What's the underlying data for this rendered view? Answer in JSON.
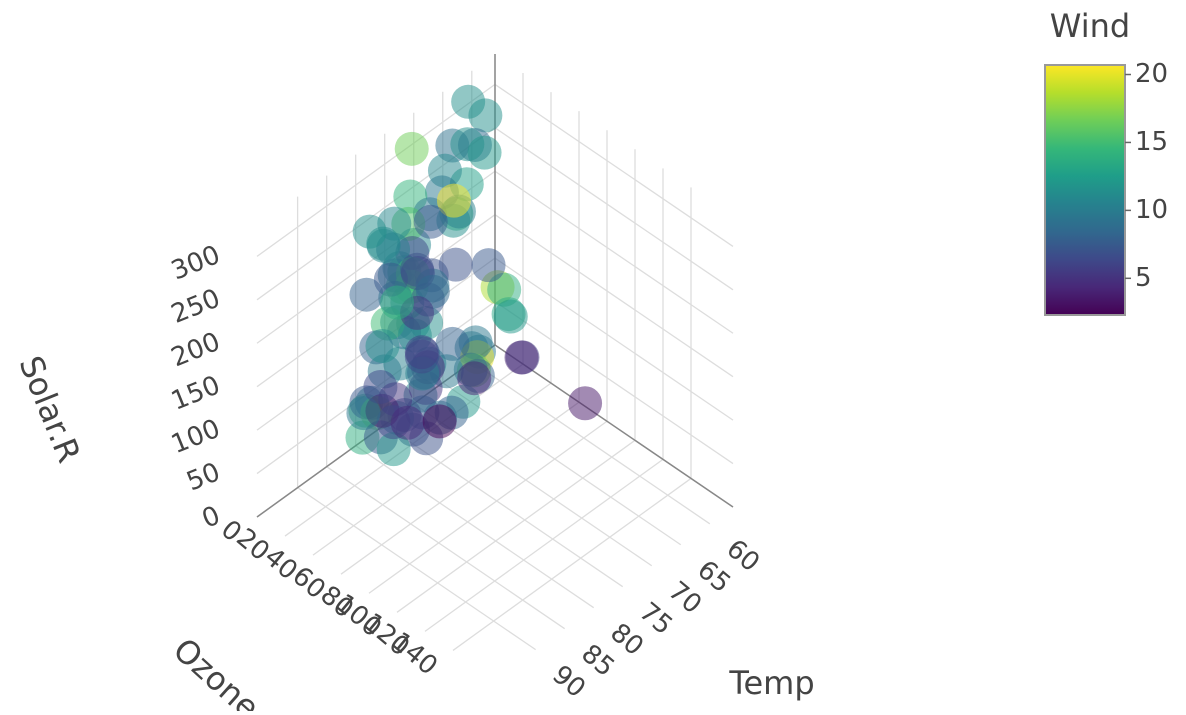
{
  "chart_data": {
    "type": "scatter3d",
    "xlabel": "Ozone",
    "ylabel": "Temp",
    "zlabel": "Solar.R",
    "colorbar_title": "Wind",
    "x": [
      41,
      36,
      12,
      18,
      23,
      19,
      8,
      16,
      11,
      14,
      18,
      14,
      34,
      6,
      30,
      11,
      1,
      11,
      4,
      32,
      23,
      45,
      115,
      37,
      29,
      71,
      39,
      23,
      21,
      37,
      20,
      12,
      13,
      135,
      49,
      32,
      64,
      40,
      77,
      97,
      97,
      85,
      10,
      27,
      7,
      48,
      35,
      61,
      79,
      63,
      16,
      80,
      108,
      20,
      52,
      82,
      50,
      64,
      59,
      39,
      9,
      16,
      122,
      89,
      110,
      44,
      28,
      65,
      168,
      73,
      76,
      118,
      84,
      85,
      96,
      78,
      73,
      91,
      47,
      32,
      20,
      23,
      21,
      24,
      44,
      21,
      28,
      9,
      13,
      46,
      18,
      13,
      24,
      16,
      13,
      23,
      36,
      7,
      14,
      30,
      14,
      18,
      20
    ],
    "y": [
      67,
      72,
      74,
      62,
      65,
      59,
      61,
      69,
      66,
      68,
      58,
      64,
      66,
      57,
      68,
      62,
      59,
      73,
      61,
      61,
      67,
      81,
      79,
      76,
      82,
      90,
      87,
      82,
      77,
      72,
      65,
      73,
      76,
      84,
      85,
      81,
      83,
      83,
      88,
      92,
      92,
      89,
      73,
      81,
      80,
      81,
      82,
      84,
      87,
      85,
      74,
      86,
      85,
      82,
      86,
      88,
      86,
      83,
      81,
      81,
      81,
      82,
      89,
      90,
      90,
      86,
      82,
      80,
      81,
      86,
      97,
      94,
      96,
      94,
      91,
      92,
      93,
      93,
      87,
      84,
      80,
      78,
      75,
      73,
      81,
      76,
      77,
      71,
      71,
      78,
      67,
      76,
      68,
      82,
      64,
      71,
      81,
      69,
      63,
      70,
      75,
      76,
      68
    ],
    "z": [
      190,
      118,
      149,
      313,
      299,
      99,
      19,
      256,
      290,
      274,
      65,
      334,
      307,
      78,
      322,
      44,
      8,
      320,
      25,
      92,
      13,
      252,
      223,
      279,
      127,
      291,
      323,
      148,
      191,
      284,
      37,
      120,
      137,
      269,
      248,
      236,
      175,
      314,
      276,
      267,
      272,
      175,
      264,
      175,
      48,
      260,
      274,
      285,
      187,
      220,
      7,
      294,
      223,
      81,
      82,
      213,
      275,
      253,
      254,
      83,
      24,
      77,
      255,
      229,
      207,
      192,
      273,
      157,
      238,
      215,
      203,
      225,
      237,
      188,
      167,
      197,
      183,
      189,
      95,
      92,
      252,
      220,
      230,
      259,
      236,
      259,
      238,
      24,
      112,
      237,
      224,
      27,
      238,
      201,
      238,
      14,
      139,
      49,
      20,
      193,
      191,
      131,
      223
    ],
    "color_values": [
      7.4,
      8.0,
      12.6,
      11.5,
      8.6,
      13.8,
      20.1,
      9.7,
      9.2,
      10.9,
      13.2,
      11.5,
      12.0,
      18.4,
      11.5,
      9.7,
      9.7,
      16.6,
      9.7,
      12.0,
      12.0,
      14.9,
      5.7,
      7.4,
      9.7,
      13.8,
      11.5,
      8.0,
      14.9,
      20.7,
      9.2,
      11.5,
      10.3,
      4.1,
      9.2,
      9.2,
      4.6,
      10.9,
      5.1,
      6.3,
      5.7,
      7.4,
      14.3,
      14.9,
      14.3,
      6.9,
      10.3,
      6.3,
      5.1,
      11.5,
      6.9,
      8.6,
      8.0,
      8.6,
      12.0,
      7.4,
      7.4,
      7.4,
      9.2,
      6.9,
      13.8,
      7.4,
      4.0,
      10.3,
      8.0,
      11.5,
      11.5,
      9.7,
      3.4,
      8.0,
      9.7,
      2.3,
      6.3,
      6.3,
      6.9,
      5.1,
      2.8,
      4.6,
      7.4,
      15.5,
      10.9,
      10.3,
      10.9,
      9.7,
      14.9,
      15.5,
      6.3,
      10.9,
      11.5,
      6.9,
      13.8,
      10.3,
      10.3,
      8.0,
      12.6,
      9.2,
      10.3,
      10.3,
      16.6,
      6.9,
      14.3,
      8.0,
      11.5
    ],
    "xlim": [
      0,
      170
    ],
    "ylim": [
      56,
      97
    ],
    "zlim": [
      0,
      335
    ],
    "xticks": [
      0,
      20,
      40,
      60,
      80,
      100,
      120,
      140
    ],
    "yticks": [
      60,
      65,
      70,
      75,
      80,
      85,
      90
    ],
    "zticks": [
      0,
      50,
      100,
      150,
      200,
      250,
      300
    ],
    "clim": [
      2.3,
      20.7
    ],
    "cticks": [
      5,
      10,
      15,
      20
    ],
    "colorscale": [
      "#440154",
      "#482878",
      "#3e4989",
      "#31688e",
      "#26828e",
      "#1f9e89",
      "#35b779",
      "#6ece58",
      "#b5de2b",
      "#fde725"
    ],
    "opacity": 0.5,
    "grid": true
  }
}
